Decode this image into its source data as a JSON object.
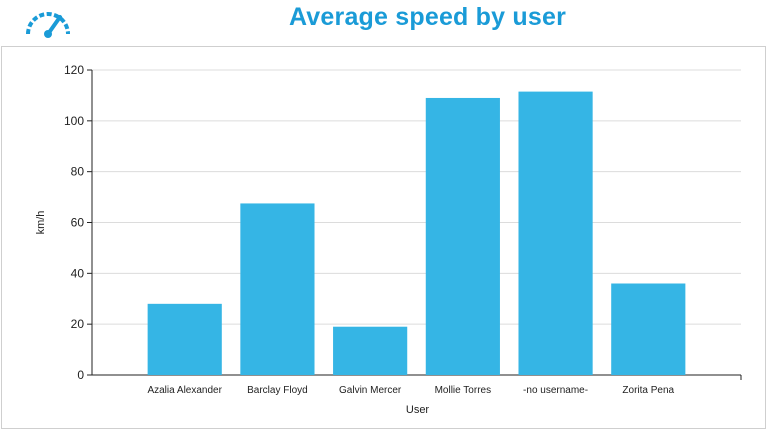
{
  "header": {
    "title": "Average speed by user",
    "logo_icon": "speedometer-icon",
    "accent_color": "#1a9bd7"
  },
  "chart_data": {
    "type": "bar",
    "title": "Average speed by user",
    "xlabel": "User",
    "ylabel": "km/h",
    "categories": [
      "Azalia Alexander",
      "Barclay Floyd",
      "Galvin Mercer",
      "Mollie Torres",
      "-no username-",
      "Zorita Pena"
    ],
    "values": [
      28,
      67.5,
      19,
      109,
      111.5,
      36
    ],
    "ylim": [
      0,
      120
    ],
    "yticks": [
      "0",
      "20",
      "40",
      "60",
      "80",
      "100",
      "120"
    ],
    "grid": true,
    "bar_color": "#35b5e5"
  }
}
